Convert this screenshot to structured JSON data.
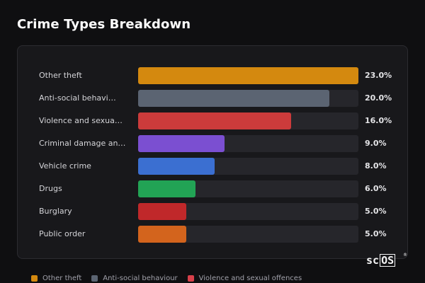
{
  "title": "Crime Types Breakdown",
  "colors": {
    "background": "#0f0f11",
    "card": "#18181b",
    "track": "#26262b"
  },
  "chart_data": {
    "type": "bar",
    "orientation": "horizontal",
    "categories": [
      "Other theft",
      "Anti-social behavi…",
      "Violence and sexua…",
      "Criminal damage an…",
      "Vehicle crime",
      "Drugs",
      "Burglary",
      "Public order"
    ],
    "values": [
      23.0,
      20.0,
      16.0,
      9.0,
      8.0,
      6.0,
      5.0,
      5.0
    ],
    "value_labels": [
      "23.0%",
      "20.0%",
      "16.0%",
      "9.0%",
      "8.0%",
      "6.0%",
      "5.0%",
      "5.0%"
    ],
    "colors": [
      "#d4890f",
      "#5b6472",
      "#cc3b3b",
      "#7b4fd1",
      "#3b6fd1",
      "#22a355",
      "#c0282a",
      "#d3641d"
    ],
    "xlim": [
      0,
      23
    ],
    "legend_position": "bottom"
  },
  "legend": [
    {
      "label": "Other theft",
      "color": "#d4890f"
    },
    {
      "label": "Anti-social behaviour",
      "color": "#5b6472"
    },
    {
      "label": "Violence and sexual offences",
      "color": "#d8404a"
    }
  ],
  "brand": {
    "left": "sc",
    "boxed": "OS",
    "mark": "®"
  }
}
